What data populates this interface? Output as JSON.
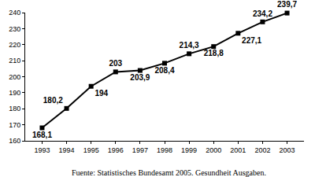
{
  "chart_data": {
    "type": "line",
    "categories": [
      "1993",
      "1994",
      "1995",
      "1996",
      "1997",
      "1998",
      "1999",
      "2000",
      "2001",
      "2002",
      "2003"
    ],
    "values": [
      168.1,
      180.2,
      194,
      203,
      203.9,
      208.4,
      214.3,
      218.8,
      227.1,
      234.2,
      239.7
    ],
    "value_labels": [
      "168,1",
      "180,2",
      "194",
      "203",
      "203,9",
      "208,4",
      "214,3",
      "218,8",
      "227,1",
      "234,2",
      "239,7"
    ],
    "data_labels": true,
    "color": "#000000",
    "marker": "square",
    "ylim": [
      160,
      240
    ],
    "yticks": [
      160,
      170,
      180,
      190,
      200,
      210,
      220,
      230,
      240
    ],
    "grid": false,
    "annotations": [
      "Fuente: Statistisches Bundesamt 2005. Gesundheit Ausgaben."
    ]
  }
}
